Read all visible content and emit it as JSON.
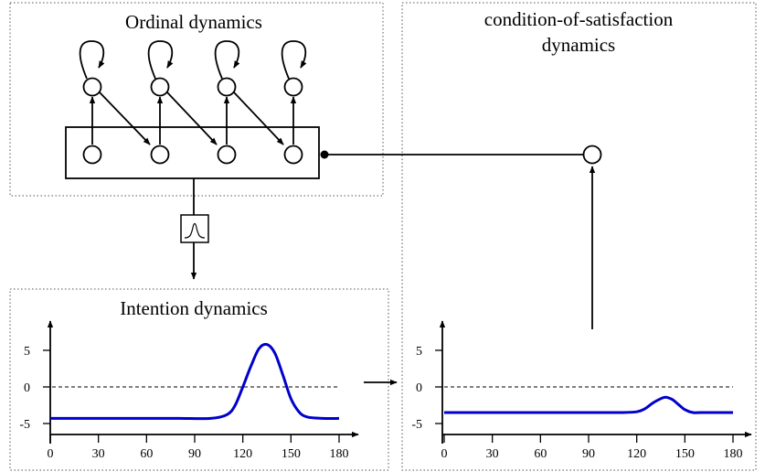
{
  "panels": {
    "ordinal": {
      "title": "Ordinal dynamics"
    },
    "cos": {
      "title_line1": "condition-of-satisfaction",
      "title_line2": "dynamics"
    },
    "intention": {
      "title": "Intention dynamics"
    }
  },
  "chart_data": [
    {
      "type": "line",
      "title": "Intention dynamics",
      "xlabel": "",
      "ylabel": "",
      "x_ticks": [
        "0",
        "30",
        "60",
        "90",
        "120",
        "150",
        "180"
      ],
      "y_ticks": [
        "5",
        "0",
        "-5"
      ],
      "xlim": [
        0,
        180
      ],
      "ylim": [
        -7,
        10
      ],
      "grid": false,
      "reference_line": {
        "y": 0,
        "style": "dashed"
      },
      "series": [
        {
          "color": "#0000cc",
          "x": [
            0,
            20,
            40,
            60,
            80,
            100,
            110,
            115,
            120,
            125,
            130,
            135,
            140,
            145,
            150,
            155,
            160,
            170,
            180
          ],
          "y": [
            -4.3,
            -4.3,
            -4.3,
            -4.3,
            -4.3,
            -4.3,
            -3.8,
            -2.6,
            0.0,
            2.8,
            5.2,
            5.8,
            4.6,
            1.6,
            -1.6,
            -3.4,
            -4.1,
            -4.3,
            -4.3
          ]
        }
      ]
    },
    {
      "type": "line",
      "title": "",
      "xlabel": "",
      "ylabel": "",
      "x_ticks": [
        "0",
        "30",
        "60",
        "90",
        "120",
        "150",
        "180"
      ],
      "y_ticks": [
        "5",
        "0",
        "-5"
      ],
      "xlim": [
        0,
        180
      ],
      "ylim": [
        -7,
        10
      ],
      "grid": false,
      "reference_line": {
        "y": 0,
        "style": "dashed"
      },
      "series": [
        {
          "color": "#0000cc",
          "x": [
            0,
            20,
            40,
            60,
            80,
            100,
            110,
            120,
            125,
            130,
            135,
            138,
            142,
            146,
            150,
            155,
            160,
            170,
            180
          ],
          "y": [
            -3.5,
            -3.5,
            -3.5,
            -3.5,
            -3.5,
            -3.5,
            -3.5,
            -3.4,
            -3.0,
            -2.2,
            -1.6,
            -1.4,
            -1.7,
            -2.4,
            -3.1,
            -3.5,
            -3.5,
            -3.5,
            -3.5
          ]
        }
      ]
    }
  ],
  "colors": {
    "curve": "#0000cc",
    "stroke": "#000000",
    "frame": "#555555"
  }
}
